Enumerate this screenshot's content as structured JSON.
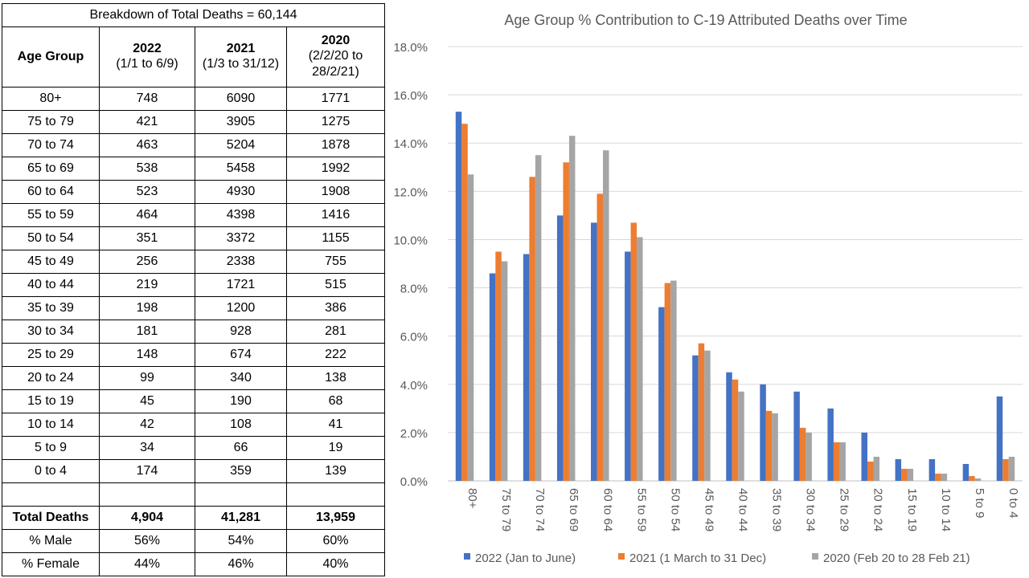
{
  "table": {
    "caption": "Breakdown of Total Deaths = 60,144",
    "age_header": "Age Group",
    "columns": [
      {
        "year": "2022",
        "sub": [
          "(1/1 to 6/9)"
        ]
      },
      {
        "year": "2021",
        "sub": [
          "(1/3 to 31/12)"
        ]
      },
      {
        "year": "2020",
        "sub": [
          "(2/2/20 to",
          "28/2/21)"
        ]
      }
    ],
    "rows": [
      {
        "age": "80+",
        "values": [
          "748",
          "6090",
          "1771"
        ]
      },
      {
        "age": "75 to 79",
        "values": [
          "421",
          "3905",
          "1275"
        ]
      },
      {
        "age": "70 to 74",
        "values": [
          "463",
          "5204",
          "1878"
        ]
      },
      {
        "age": "65 to 69",
        "values": [
          "538",
          "5458",
          "1992"
        ]
      },
      {
        "age": "60 to 64",
        "values": [
          "523",
          "4930",
          "1908"
        ]
      },
      {
        "age": "55 to 59",
        "values": [
          "464",
          "4398",
          "1416"
        ]
      },
      {
        "age": "50 to 54",
        "values": [
          "351",
          "3372",
          "1155"
        ]
      },
      {
        "age": "45 to 49",
        "values": [
          "256",
          "2338",
          "755"
        ]
      },
      {
        "age": "40 to 44",
        "values": [
          "219",
          "1721",
          "515"
        ]
      },
      {
        "age": "35 to 39",
        "values": [
          "198",
          "1200",
          "386"
        ]
      },
      {
        "age": "30 to 34",
        "values": [
          "181",
          "928",
          "281"
        ]
      },
      {
        "age": "25 to 29",
        "values": [
          "148",
          "674",
          "222"
        ]
      },
      {
        "age": "20 to 24",
        "values": [
          "99",
          "340",
          "138"
        ]
      },
      {
        "age": "15 to 19",
        "values": [
          "45",
          "190",
          "68"
        ]
      },
      {
        "age": "10 to 14",
        "values": [
          "42",
          "108",
          "41"
        ]
      },
      {
        "age": "5 to 9",
        "values": [
          "34",
          "66",
          "19"
        ]
      },
      {
        "age": "0 to 4",
        "values": [
          "174",
          "359",
          "139"
        ]
      }
    ],
    "totals": {
      "label": "Total Deaths",
      "values": [
        "4,904",
        "41,281",
        "13,959"
      ]
    },
    "male": {
      "label": "% Male",
      "values": [
        "56%",
        "54%",
        "60%"
      ]
    },
    "female": {
      "label": "% Female",
      "values": [
        "44%",
        "46%",
        "40%"
      ]
    }
  },
  "chart_data": {
    "type": "bar",
    "title": "Age Group % Contribution to C-19 Attributed Deaths over Time",
    "xlabel": "",
    "ylabel": "",
    "ylim": [
      0,
      18
    ],
    "yticks": [
      "0.0%",
      "2.0%",
      "4.0%",
      "6.0%",
      "8.0%",
      "10.0%",
      "12.0%",
      "14.0%",
      "16.0%",
      "18.0%"
    ],
    "grid": true,
    "legend_position": "bottom",
    "categories": [
      "80+",
      "75 to 79",
      "70 to 74",
      "65 to 69",
      "60 to 64",
      "55 to 59",
      "50 to 54",
      "45 to 49",
      "40 to 44",
      "35 to 39",
      "30 to 34",
      "25 to 29",
      "20 to 24",
      "15 to 19",
      "10 to 14",
      "5 to 9",
      "0 to 4"
    ],
    "series": [
      {
        "name": "2022 (Jan to June)",
        "color": "#4472C4",
        "values": [
          15.3,
          8.6,
          9.4,
          11.0,
          10.7,
          9.5,
          7.2,
          5.2,
          4.5,
          4.0,
          3.7,
          3.0,
          2.0,
          0.9,
          0.9,
          0.7,
          3.5
        ]
      },
      {
        "name": "2021 (1 March to 31 Dec)",
        "color": "#ED7D31",
        "values": [
          14.8,
          9.5,
          12.6,
          13.2,
          11.9,
          10.7,
          8.2,
          5.7,
          4.2,
          2.9,
          2.2,
          1.6,
          0.8,
          0.5,
          0.3,
          0.2,
          0.9
        ]
      },
      {
        "name": "2020 (Feb 20 to 28 Feb 21)",
        "color": "#A5A5A5",
        "values": [
          12.7,
          9.1,
          13.5,
          14.3,
          13.7,
          10.1,
          8.3,
          5.4,
          3.7,
          2.8,
          2.0,
          1.6,
          1.0,
          0.5,
          0.3,
          0.1,
          1.0
        ]
      }
    ]
  }
}
